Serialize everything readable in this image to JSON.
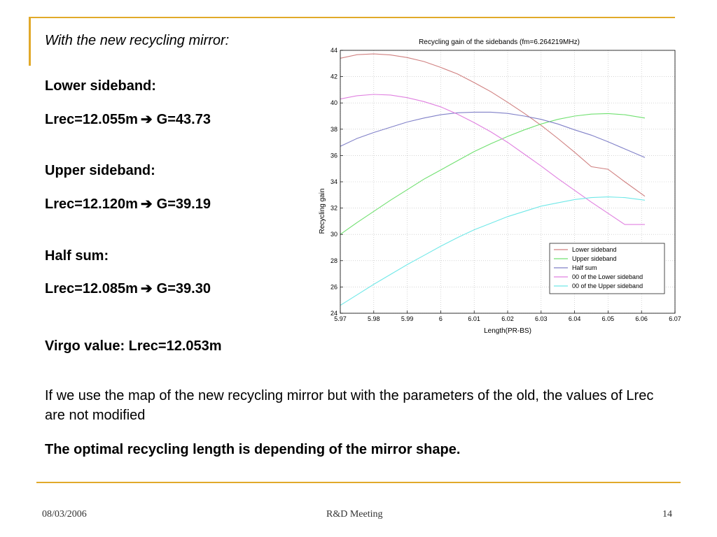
{
  "slide": {
    "heading": "With the new recycling mirror:",
    "lower": {
      "label": "Lower sideband:",
      "lrec": "Lrec=12.055m",
      "gain": "G=43.73"
    },
    "upper": {
      "label": "Upper sideband:",
      "lrec": "Lrec=12.120m",
      "gain": "G=39.19"
    },
    "half": {
      "label": "Half sum:",
      "lrec": "Lrec=12.085m",
      "gain": "G=39.30"
    },
    "virgo": "Virgo value: Lrec=12.053m",
    "paragraph": "If we use the map of the new recycling mirror but with the parameters of the old, the values of Lrec are not modified",
    "conclusion": "The optimal recycling length is depending of the mirror shape.",
    "arrow": "➔"
  },
  "footer": {
    "date": "08/03/2006",
    "center": "R&D Meeting",
    "page": "14"
  },
  "chart_data": {
    "type": "line",
    "title": "Recycling gain of the sidebands (fm=6.264219MHz)",
    "xlabel": "Length(PR-BS)",
    "ylabel": "Recycling gain",
    "xlim": [
      5.97,
      6.07
    ],
    "ylim": [
      24,
      44
    ],
    "xticks": [
      5.97,
      5.98,
      5.99,
      6,
      6.01,
      6.02,
      6.03,
      6.04,
      6.05,
      6.06,
      6.07
    ],
    "xtick_labels": [
      "5.97",
      "5.98",
      "5.99",
      "6",
      "6.01",
      "6.02",
      "6.03",
      "6.04",
      "6.05",
      "6.06",
      "6.07"
    ],
    "yticks": [
      24,
      26,
      28,
      30,
      32,
      34,
      36,
      38,
      40,
      42,
      44
    ],
    "yticks_labels": [
      "24",
      "26",
      "28",
      "30",
      "32",
      "34",
      "36",
      "38",
      "40",
      "42",
      "44"
    ],
    "grid": true,
    "legend_position": "bottom-right",
    "series": [
      {
        "name": "Lower sideband",
        "color": "#d08080",
        "x": [
          5.97,
          5.975,
          5.98,
          5.985,
          5.99,
          5.995,
          6.0,
          6.005,
          6.01,
          6.015,
          6.02,
          6.025,
          6.03,
          6.035,
          6.04,
          6.045,
          6.05,
          6.055,
          6.061
        ],
        "y": [
          43.4,
          43.67,
          43.73,
          43.65,
          43.45,
          43.15,
          42.7,
          42.2,
          41.55,
          40.85,
          40.05,
          39.2,
          38.3,
          37.3,
          36.25,
          35.15,
          34.95,
          34.0,
          32.9
        ]
      },
      {
        "name": "Upper sideband",
        "color": "#70e070",
        "x": [
          5.97,
          5.975,
          5.98,
          5.985,
          5.99,
          5.995,
          6.0,
          6.005,
          6.01,
          6.015,
          6.02,
          6.025,
          6.03,
          6.035,
          6.04,
          6.045,
          6.05,
          6.055,
          6.061
        ],
        "y": [
          30.0,
          30.9,
          31.75,
          32.6,
          33.4,
          34.2,
          34.9,
          35.6,
          36.3,
          36.9,
          37.45,
          37.95,
          38.4,
          38.75,
          39.0,
          39.15,
          39.19,
          39.1,
          38.85
        ]
      },
      {
        "name": "Half sum",
        "color": "#8080c8",
        "x": [
          5.97,
          5.975,
          5.98,
          5.985,
          5.99,
          5.995,
          6.0,
          6.005,
          6.01,
          6.015,
          6.02,
          6.025,
          6.03,
          6.035,
          6.04,
          6.045,
          6.05,
          6.055,
          6.061
        ],
        "y": [
          36.7,
          37.3,
          37.75,
          38.15,
          38.55,
          38.85,
          39.1,
          39.25,
          39.3,
          39.3,
          39.2,
          39.0,
          38.75,
          38.4,
          37.95,
          37.55,
          37.05,
          36.5,
          35.85
        ]
      },
      {
        "name": "00 of the Lower sideband",
        "color": "#e080e0",
        "x": [
          5.97,
          5.975,
          5.98,
          5.985,
          5.99,
          5.995,
          6.0,
          6.005,
          6.01,
          6.015,
          6.02,
          6.025,
          6.03,
          6.035,
          6.04,
          6.045,
          6.05,
          6.055,
          6.061
        ],
        "y": [
          40.3,
          40.55,
          40.65,
          40.6,
          40.4,
          40.1,
          39.7,
          39.15,
          38.5,
          37.8,
          37.0,
          36.1,
          35.2,
          34.25,
          33.35,
          32.45,
          31.6,
          30.75,
          30.75
        ]
      },
      {
        "name": "00 of the Upper sideband",
        "color": "#70e8e8",
        "x": [
          5.97,
          5.975,
          5.98,
          5.985,
          5.99,
          5.995,
          6.0,
          6.005,
          6.01,
          6.015,
          6.02,
          6.025,
          6.03,
          6.035,
          6.04,
          6.045,
          6.05,
          6.055,
          6.061
        ],
        "y": [
          24.6,
          25.4,
          26.2,
          26.95,
          27.7,
          28.4,
          29.1,
          29.75,
          30.35,
          30.85,
          31.35,
          31.75,
          32.15,
          32.4,
          32.65,
          32.8,
          32.85,
          32.8,
          32.6
        ]
      }
    ]
  }
}
